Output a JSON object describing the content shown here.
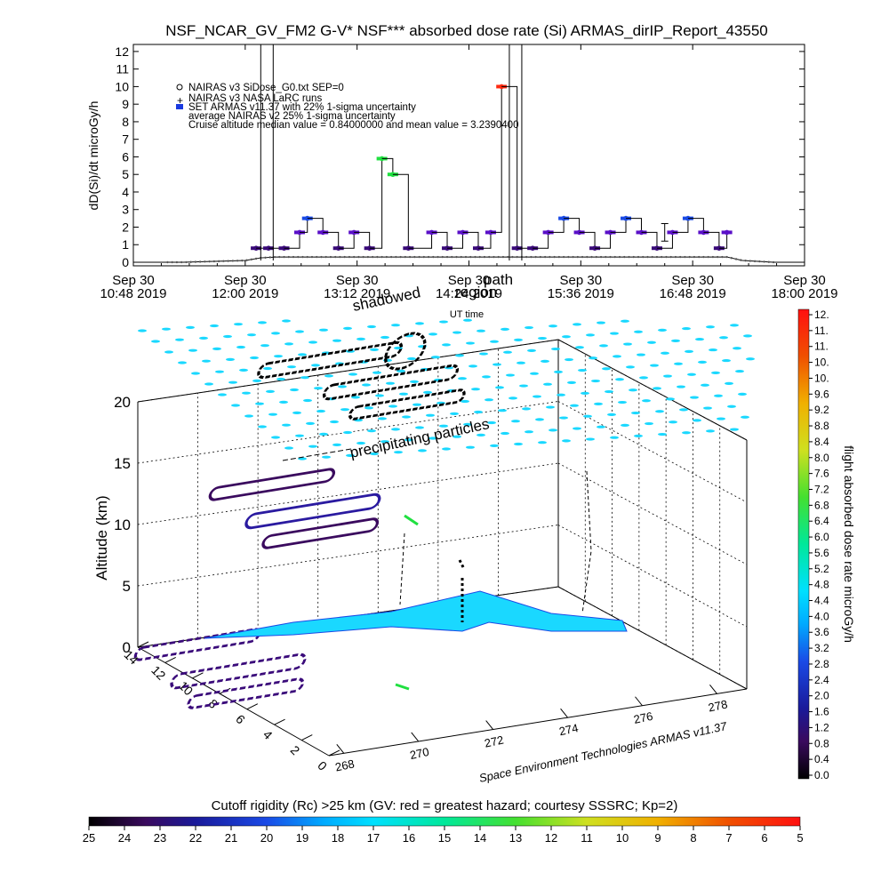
{
  "title": "NSF_NCAR_GV_FM2 G-V* NSF*** absorbed dose rate (Si) ARMAS_dirIP_Report_43550",
  "top_chart": {
    "ylabel": "dD(Si)/dt microGy/h",
    "xlabel": "UT time",
    "yticks": [
      "0",
      "1",
      "2",
      "3",
      "4",
      "5",
      "6",
      "7",
      "8",
      "9",
      "10",
      "11",
      "12"
    ],
    "xticks": [
      {
        "line1": "Sep 30",
        "line2": "10:48 2019"
      },
      {
        "line1": "Sep 30",
        "line2": "12:00 2019"
      },
      {
        "line1": "Sep 30",
        "line2": "13:12 2019"
      },
      {
        "line1": "Sep 30",
        "line2": "14:24 2019"
      },
      {
        "line1": "Sep 30",
        "line2": "15:36 2019"
      },
      {
        "line1": "Sep 30",
        "line2": "16:48 2019"
      },
      {
        "line1": "Sep 30",
        "line2": "18:00 2019"
      }
    ],
    "legend": [
      "NAIRAS v3 SiDose_G0.txt SEP=0",
      "NAIRAS v3 NASA LaRC runs",
      "SET ARMAS v11.37 with 22% 1-sigma uncertainty",
      "average NAIRAS v2 25% 1-sigma uncertainty",
      "Cruise altitude median value = 0.84000000 and mean value = 3.2390400"
    ]
  },
  "overlay_labels": {
    "shadowed": "shadowed",
    "region": "region",
    "path": "path",
    "precipitating": "precipitating particles",
    "credit": "Space Environment Technologies ARMAS v11.37"
  },
  "plot3d": {
    "zlabel": "Altitude (km)",
    "zticks": [
      "0",
      "5",
      "10",
      "15",
      "20"
    ],
    "lat_ticks": [
      "0",
      "2",
      "4",
      "6",
      "8",
      "10",
      "12",
      "14"
    ],
    "lon_ticks": [
      "268",
      "270",
      "272",
      "274",
      "276",
      "278"
    ]
  },
  "colorbar_right": {
    "label": "flight absorbed dose rate microGy/h",
    "ticks": [
      "12.",
      "11.",
      "11.",
      "10.",
      "10.",
      "9.6",
      "9.2",
      "8.8",
      "8.4",
      "8.0",
      "7.6",
      "7.2",
      "6.8",
      "6.4",
      "6.0",
      "5.6",
      "5.2",
      "4.8",
      "4.4",
      "4.0",
      "3.6",
      "3.2",
      "2.8",
      "2.4",
      "2.0",
      "1.6",
      "1.2",
      "0.8",
      "0.4",
      "0.0"
    ]
  },
  "colorbar_bottom": {
    "label": "Cutoff rigidity (Rc) >25 km (GV: red = greatest hazard; courtesy SSSRC; Kp=2)",
    "ticks": [
      "25",
      "24",
      "23",
      "22",
      "21",
      "20",
      "19",
      "18",
      "17",
      "16",
      "15",
      "14",
      "13",
      "12",
      "11",
      "10",
      "9",
      "8",
      "7",
      "6",
      "5"
    ]
  },
  "chart_data": {
    "type": "line",
    "title": "NSF_NCAR_GV_FM2 G-V* NSF*** absorbed dose rate (Si) ARMAS_dirIP_Report_43550",
    "xlabel": "UT time",
    "ylabel": "dD(Si)/dt microGy/h",
    "ylim": [
      0,
      12
    ],
    "xlim": [
      "10:48",
      "18:00"
    ],
    "series": [
      {
        "name": "SET ARMAS v11.37 with 22% 1-sigma uncertainty",
        "x": [
          "12:07",
          "12:15",
          "12:25",
          "12:35",
          "12:40",
          "12:50",
          "13:00",
          "13:10",
          "13:20",
          "13:28",
          "13:35",
          "13:45",
          "14:00",
          "14:10",
          "14:20",
          "14:30",
          "14:38",
          "14:45",
          "14:55",
          "15:05",
          "15:15",
          "15:25",
          "15:35",
          "15:45",
          "15:55",
          "16:05",
          "16:15",
          "16:25",
          "16:35",
          "16:45",
          "16:55",
          "17:05",
          "17:10"
        ],
        "values": [
          0.8,
          0.8,
          0.8,
          1.7,
          2.5,
          1.7,
          0.8,
          1.7,
          0.8,
          5.9,
          5.0,
          0.8,
          1.7,
          0.8,
          1.7,
          0.8,
          1.7,
          10.0,
          0.8,
          0.8,
          1.7,
          2.5,
          1.7,
          0.8,
          1.7,
          2.5,
          1.7,
          0.8,
          1.7,
          2.5,
          1.7,
          0.8,
          1.7
        ]
      },
      {
        "name": "NAIRAS v3 SiDose_G0.txt SEP=0",
        "x": [
          "10:48",
          "11:00",
          "11:20",
          "11:40",
          "12:00",
          "12:10",
          "12:20",
          "13:00",
          "14:00",
          "15:00",
          "16:00",
          "17:00",
          "17:10",
          "17:20",
          "17:40",
          "18:00"
        ],
        "values": [
          0.0,
          0.0,
          0.0,
          0.05,
          0.1,
          0.25,
          0.3,
          0.3,
          0.3,
          0.3,
          0.3,
          0.3,
          0.3,
          0.1,
          0.0,
          0.0
        ]
      }
    ],
    "markers": [
      {
        "name": "high spike",
        "x": "12:10",
        "y": 12
      },
      {
        "name": "high spike",
        "x": "14:50",
        "y": 12
      }
    ]
  }
}
